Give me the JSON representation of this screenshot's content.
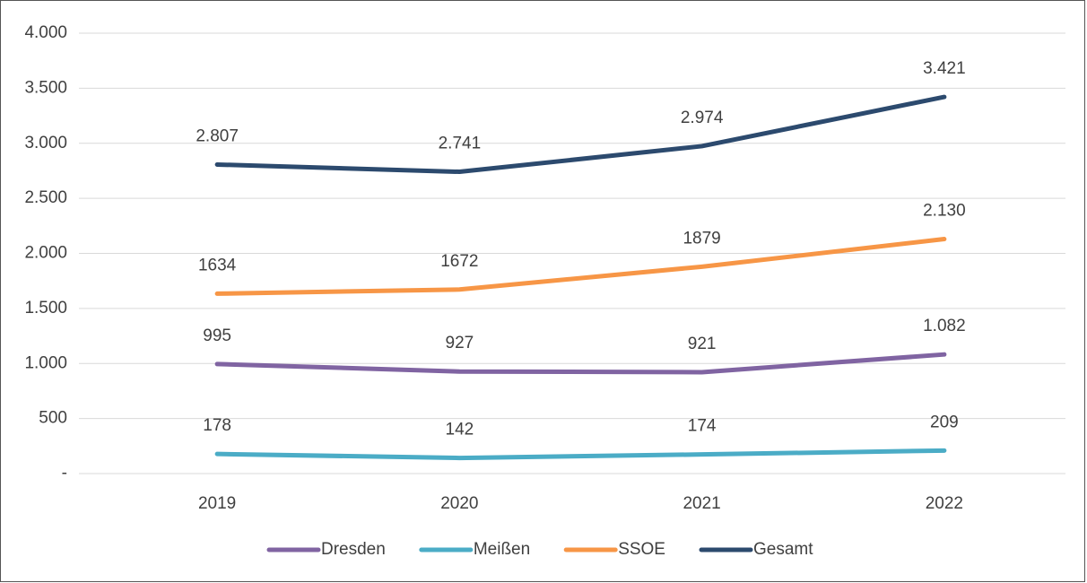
{
  "chart_data": {
    "type": "line",
    "categories": [
      "2019",
      "2020",
      "2021",
      "2022"
    ],
    "series": [
      {
        "name": "Dresden",
        "color": "#8064a2",
        "values": [
          995,
          927,
          921,
          1082
        ],
        "value_labels": [
          "995",
          "927",
          "921",
          "1.082"
        ]
      },
      {
        "name": "Meißen",
        "color": "#4bacc6",
        "values": [
          178,
          142,
          174,
          209
        ]
      },
      {
        "name": "SSOE",
        "color": "#f79646",
        "values": [
          1634,
          1672,
          1879,
          2130
        ],
        "value_labels": [
          "1634",
          "1672",
          "1879",
          "2.130"
        ]
      },
      {
        "name": "Gesamt",
        "color": "#2c4a6e",
        "values": [
          2807,
          2741,
          2974,
          3421
        ],
        "value_labels": [
          "2.807",
          "2.741",
          "2.974",
          "3.421"
        ]
      }
    ],
    "ylim": [
      0,
      4000
    ],
    "yticks": [
      {
        "value": 0,
        "label": "-"
      },
      500,
      {
        "value": 1000,
        "label": "1.000"
      },
      {
        "value": 1500,
        "label": "1.500"
      },
      {
        "value": 2000,
        "label": "2.000"
      },
      {
        "value": 2500,
        "label": "2.500"
      },
      {
        "value": 3000,
        "label": "3.000"
      },
      {
        "value": 3500,
        "label": "3.500"
      },
      {
        "value": 4000,
        "label": "4.000"
      }
    ],
    "grid": true,
    "legend": "bottom"
  }
}
